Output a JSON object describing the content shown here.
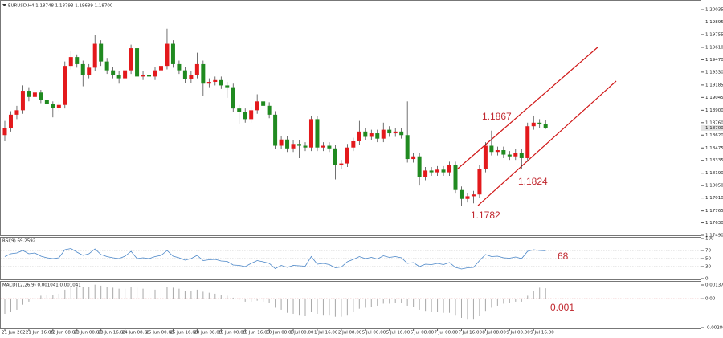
{
  "chart_data": [
    {
      "type": "candlestick",
      "title": "EURUSD,H4  1.18748 1.18793 1.18689 1.18700",
      "up_color": "#e3191c",
      "down_color": "#208a20",
      "categories": [
        "21 Jun 2021",
        null,
        null,
        null,
        "21 Jun 16:00",
        null,
        null,
        null,
        "22 Jun 08:00",
        null,
        null,
        null,
        "23 Jun 00:00",
        null,
        null,
        null,
        "23 Jun 16:00",
        null,
        null,
        null,
        "24 Jun 08:00",
        null,
        null,
        null,
        "25 Jun 00:00",
        null,
        null,
        null,
        "25 Jun 16:00",
        null,
        null,
        null,
        "28 Jun 08:00",
        null,
        null,
        null,
        "29 Jun 00:00",
        null,
        null,
        null,
        "29 Jun 16:00",
        null,
        null,
        null,
        "30 Jun 08:00",
        null,
        null,
        null,
        "1 Jul 00:00",
        null,
        null,
        null,
        "1 Jul 16:00",
        null,
        null,
        null,
        "2 Jul 08:00",
        null,
        null,
        null,
        "5 Jul 00:00",
        null,
        null,
        null,
        "5 Jul 16:00",
        null,
        null,
        null,
        "6 Jul 08:00",
        null,
        null,
        null,
        "7 Jul 00:00",
        null,
        null,
        null,
        "7 Jul 16:00",
        null,
        null,
        null,
        "8 Jul 08:00",
        null,
        null,
        null,
        "9 Jul 00:00",
        null,
        null,
        null,
        "9 Jul 16:00",
        null,
        null
      ],
      "ohlc": [
        [
          1.1862,
          1.1878,
          1.1855,
          1.187
        ],
        [
          1.187,
          1.1889,
          1.1866,
          1.1885
        ],
        [
          1.1885,
          1.1895,
          1.188,
          1.189
        ],
        [
          1.189,
          1.1918,
          1.1886,
          1.1912
        ],
        [
          1.1912,
          1.1916,
          1.19,
          1.1905
        ],
        [
          1.1905,
          1.1914,
          1.19,
          1.191
        ],
        [
          1.191,
          1.1913,
          1.1898,
          1.1902
        ],
        [
          1.1902,
          1.1906,
          1.1893,
          1.1897
        ],
        [
          1.1897,
          1.19,
          1.1882,
          1.1893
        ],
        [
          1.1893,
          1.19,
          1.1889,
          1.1896
        ],
        [
          1.1896,
          1.1945,
          1.1892,
          1.194
        ],
        [
          1.194,
          1.1957,
          1.1936,
          1.195
        ],
        [
          1.195,
          1.1953,
          1.1938,
          1.1942
        ],
        [
          1.1942,
          1.1946,
          1.1917,
          1.193
        ],
        [
          1.193,
          1.1942,
          1.1926,
          1.1938
        ],
        [
          1.1938,
          1.1975,
          1.1934,
          1.1965
        ],
        [
          1.1965,
          1.1969,
          1.194,
          1.1945
        ],
        [
          1.1945,
          1.1949,
          1.1931,
          1.1935
        ],
        [
          1.1935,
          1.1939,
          1.1926,
          1.193
        ],
        [
          1.193,
          1.1934,
          1.192,
          1.1926
        ],
        [
          1.1926,
          1.1939,
          1.1922,
          1.1935
        ],
        [
          1.1935,
          1.1964,
          1.1931,
          1.196
        ],
        [
          1.196,
          1.1964,
          1.192,
          1.1928
        ],
        [
          1.1928,
          1.1934,
          1.1924,
          1.193
        ],
        [
          1.193,
          1.1934,
          1.1924,
          1.1928
        ],
        [
          1.1928,
          1.1939,
          1.1924,
          1.1935
        ],
        [
          1.1935,
          1.1944,
          1.1931,
          1.194
        ],
        [
          1.194,
          1.1982,
          1.1936,
          1.1965
        ],
        [
          1.1965,
          1.1969,
          1.1938,
          1.1942
        ],
        [
          1.1942,
          1.1946,
          1.1931,
          1.1935
        ],
        [
          1.1935,
          1.1939,
          1.1921,
          1.1925
        ],
        [
          1.1925,
          1.1934,
          1.1921,
          1.193
        ],
        [
          1.193,
          1.1955,
          1.1926,
          1.1942
        ],
        [
          1.1942,
          1.1946,
          1.1906,
          1.192
        ],
        [
          1.192,
          1.1926,
          1.1916,
          1.1922
        ],
        [
          1.1922,
          1.1928,
          1.1918,
          1.1924
        ],
        [
          1.1924,
          1.1928,
          1.1914,
          1.1918
        ],
        [
          1.1918,
          1.1922,
          1.1904,
          1.1916
        ],
        [
          1.1916,
          1.192,
          1.1888,
          1.1892
        ],
        [
          1.1892,
          1.1896,
          1.1875,
          1.1888
        ],
        [
          1.1888,
          1.1892,
          1.1876,
          1.188
        ],
        [
          1.188,
          1.1894,
          1.1876,
          1.189
        ],
        [
          1.189,
          1.1908,
          1.1886,
          1.19
        ],
        [
          1.19,
          1.1904,
          1.1891,
          1.1895
        ],
        [
          1.1895,
          1.1899,
          1.1881,
          1.1885
        ],
        [
          1.1885,
          1.1889,
          1.1846,
          1.185
        ],
        [
          1.185,
          1.1861,
          1.1846,
          1.1857
        ],
        [
          1.1857,
          1.1861,
          1.1843,
          1.1847
        ],
        [
          1.1847,
          1.1856,
          1.1843,
          1.1852
        ],
        [
          1.1852,
          1.1856,
          1.1836,
          1.185
        ],
        [
          1.185,
          1.1854,
          1.1844,
          1.1848
        ],
        [
          1.1848,
          1.1884,
          1.1844,
          1.188
        ],
        [
          1.188,
          1.1884,
          1.1844,
          1.1848
        ],
        [
          1.1848,
          1.1854,
          1.1844,
          1.185
        ],
        [
          1.185,
          1.1854,
          1.1843,
          1.1847
        ],
        [
          1.1847,
          1.1851,
          1.1812,
          1.1828
        ],
        [
          1.1828,
          1.1834,
          1.1824,
          1.183
        ],
        [
          1.183,
          1.1852,
          1.1826,
          1.1848
        ],
        [
          1.1848,
          1.1859,
          1.1844,
          1.1855
        ],
        [
          1.1855,
          1.1878,
          1.1851,
          1.1866
        ],
        [
          1.1866,
          1.187,
          1.1856,
          1.186
        ],
        [
          1.186,
          1.1868,
          1.1856,
          1.1864
        ],
        [
          1.1864,
          1.1868,
          1.1854,
          1.1858
        ],
        [
          1.1858,
          1.1876,
          1.1854,
          1.1868
        ],
        [
          1.1868,
          1.1872,
          1.186,
          1.1864
        ],
        [
          1.1864,
          1.187,
          1.186,
          1.1866
        ],
        [
          1.1866,
          1.187,
          1.1858,
          1.1862
        ],
        [
          1.1862,
          1.19,
          1.1831,
          1.1835
        ],
        [
          1.1835,
          1.1842,
          1.1831,
          1.1838
        ],
        [
          1.1838,
          1.1842,
          1.1805,
          1.1815
        ],
        [
          1.1815,
          1.1826,
          1.1811,
          1.1822
        ],
        [
          1.1822,
          1.1826,
          1.1816,
          1.182
        ],
        [
          1.182,
          1.1827,
          1.1816,
          1.1823
        ],
        [
          1.1823,
          1.1827,
          1.1816,
          1.182
        ],
        [
          1.182,
          1.1832,
          1.1816,
          1.1828
        ],
        [
          1.1828,
          1.1832,
          1.1796,
          1.18
        ],
        [
          1.18,
          1.1804,
          1.1782,
          1.179
        ],
        [
          1.179,
          1.1797,
          1.1786,
          1.1793
        ],
        [
          1.1793,
          1.1799,
          1.1785,
          1.1795
        ],
        [
          1.1795,
          1.1828,
          1.1791,
          1.1824
        ],
        [
          1.1824,
          1.1854,
          1.182,
          1.185
        ],
        [
          1.185,
          1.1867,
          1.1839,
          1.1843
        ],
        [
          1.1843,
          1.1849,
          1.1839,
          1.1845
        ],
        [
          1.1845,
          1.1849,
          1.1836,
          1.184
        ],
        [
          1.184,
          1.1844,
          1.1834,
          1.1838
        ],
        [
          1.1838,
          1.1846,
          1.1834,
          1.1842
        ],
        [
          1.1842,
          1.1846,
          1.1824,
          1.1836
        ],
        [
          1.1836,
          1.1876,
          1.1832,
          1.1872
        ],
        [
          1.1872,
          1.1884,
          1.1868,
          1.1876
        ],
        [
          1.1876,
          1.188,
          1.187,
          1.18748
        ],
        [
          1.18748,
          1.18793,
          1.18689,
          1.187
        ]
      ],
      "last_price": {
        "value": 1.187,
        "label": "1.18700"
      },
      "ylim": [
        1.1749,
        1.20126
      ],
      "yticks": [
        1.20035,
        1.19895,
        1.19755,
        {
          "value": 1.1961,
          "label": "1.19610"
        },
        {
          "value": 1.1947,
          "label": "1.19470"
        },
        {
          "value": 1.1933,
          "label": "1.19330"
        },
        1.19185,
        1.19045,
        {
          "value": 1.189,
          "label": "1.18900"
        },
        {
          "value": 1.1876,
          "label": "1.18760"
        },
        {
          "value": 1.1862,
          "label": "1.18620"
        },
        1.18475,
        1.18335,
        {
          "value": 1.1819,
          "label": "1.18190"
        },
        {
          "value": 1.1805,
          "label": "1.18050"
        },
        {
          "value": 1.1791,
          "label": "1.17910"
        },
        1.17765,
        {
          "value": 1.1763,
          "label": "1.17630"
        },
        {
          "value": 1.1749,
          "label": "1.17490"
        }
      ],
      "annotations": [
        "1.1867",
        "1.1824",
        "1.1782"
      ]
    },
    {
      "type": "line",
      "title": "RSI(9) 69.2592",
      "color": "#4a86c8",
      "values": [
        55,
        62,
        64,
        70,
        62,
        64,
        56,
        52,
        50,
        52,
        72,
        75,
        66,
        58,
        62,
        74,
        60,
        55,
        52,
        50,
        56,
        68,
        50,
        52,
        50,
        55,
        58,
        70,
        56,
        52,
        46,
        50,
        58,
        45,
        47,
        48,
        44,
        43,
        34,
        33,
        30,
        38,
        45,
        42,
        38,
        25,
        33,
        28,
        33,
        32,
        31,
        55,
        36,
        38,
        35,
        27,
        29,
        42,
        48,
        55,
        50,
        53,
        49,
        57,
        53,
        55,
        52,
        38,
        40,
        30,
        36,
        35,
        38,
        35,
        40,
        28,
        24,
        27,
        28,
        45,
        60,
        55,
        56,
        52,
        51,
        54,
        50,
        68,
        72,
        70,
        69.2592
      ],
      "ylim": [
        0,
        100
      ],
      "yticks": [
        100,
        70,
        50,
        30,
        0
      ],
      "annotations": [
        "68"
      ]
    },
    {
      "type": "bar",
      "title": "MACD(12,26,9) 0.001041 0.001041",
      "color": "#a8a8a8",
      "values": [
        -0.0015,
        -0.0013,
        -0.0011,
        -0.0006,
        -0.0003,
        0.0001,
        0.0003,
        0.0004,
        0.0004,
        0.0005,
        0.0009,
        0.0011,
        0.0012,
        0.0012,
        0.0012,
        0.0014,
        0.0013,
        0.0012,
        0.0011,
        0.001,
        0.001,
        0.0012,
        0.0011,
        0.001,
        0.0009,
        0.0009,
        0.001,
        0.0012,
        0.0011,
        0.001,
        0.0008,
        0.0008,
        0.0009,
        0.0007,
        0.0006,
        0.0005,
        0.0004,
        0.0003,
        0.0001,
        -0.0001,
        -0.0003,
        -0.0003,
        -0.0002,
        -0.0003,
        -0.0004,
        -0.0009,
        -0.0011,
        -0.0014,
        -0.0015,
        -0.0016,
        -0.0017,
        -0.0013,
        -0.0015,
        -0.0016,
        -0.0016,
        -0.0018,
        -0.0018,
        -0.0016,
        -0.0013,
        -0.001,
        -0.0009,
        -0.0008,
        -0.0007,
        -0.0005,
        -0.0005,
        -0.0004,
        -0.0004,
        -0.0007,
        -0.0008,
        -0.0011,
        -0.0012,
        -0.0013,
        -0.0013,
        -0.0014,
        -0.0014,
        -0.0016,
        -0.0019,
        -0.002,
        -0.002,
        -0.0017,
        -0.0012,
        -0.0009,
        -0.0007,
        -0.0005,
        -0.0004,
        -0.0003,
        -0.0003,
        0.0003,
        0.0008,
        0.0011,
        0.001041
      ],
      "ylim": [
        -0.002861,
        0.001372
      ],
      "yticks": [
        0.001372,
        {
          "value": 0,
          "label": "0.00"
        },
        -0.002861
      ],
      "annotations": [
        "0.001"
      ]
    }
  ]
}
